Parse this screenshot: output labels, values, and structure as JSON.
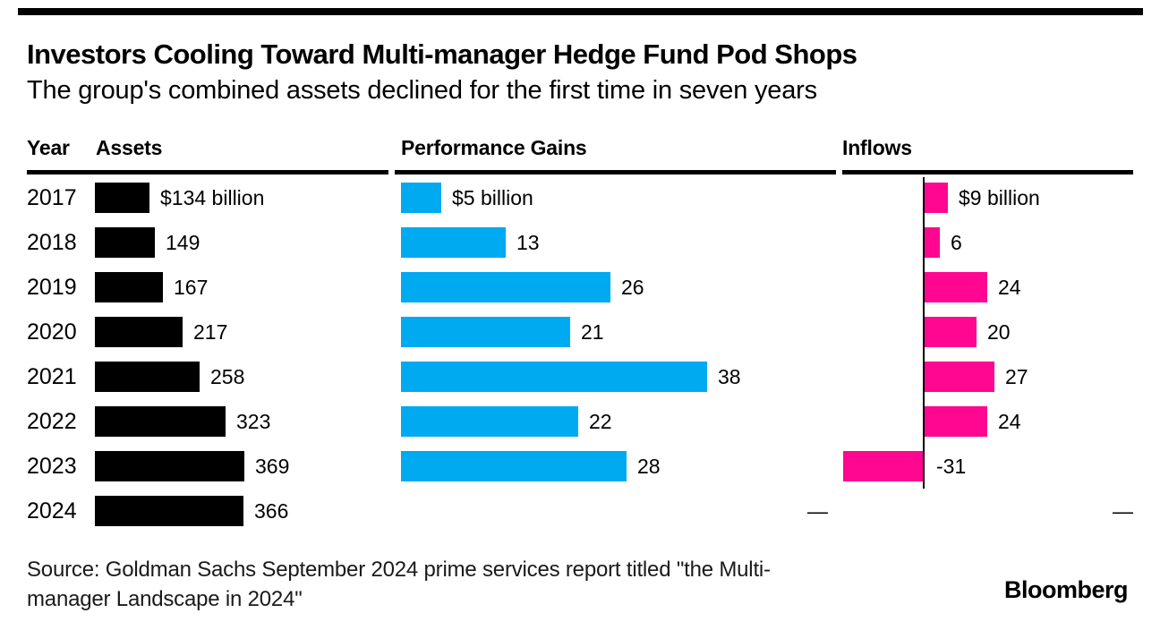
{
  "header": {
    "title": "Investors Cooling Toward Multi-manager Hedge Fund Pod Shops",
    "subtitle": "The group's combined assets declined for the first time in seven years"
  },
  "table": {
    "year_header": "Year",
    "columns": [
      "Assets",
      "Performance Gains",
      "Inflows"
    ]
  },
  "chart_data": {
    "type": "bar",
    "orientation": "horizontal",
    "categories": [
      "2017",
      "2018",
      "2019",
      "2020",
      "2021",
      "2022",
      "2023",
      "2024"
    ],
    "series": [
      {
        "name": "Assets",
        "color": "#000000",
        "values": [
          134,
          149,
          167,
          217,
          258,
          323,
          369,
          366
        ],
        "labels": [
          "$134 billion",
          "149",
          "167",
          "217",
          "258",
          "323",
          "369",
          "366"
        ]
      },
      {
        "name": "Performance Gains",
        "color": "#00aaf0",
        "values": [
          5,
          13,
          26,
          21,
          38,
          22,
          28,
          null
        ],
        "labels": [
          "$5 billion",
          "13",
          "26",
          "21",
          "38",
          "22",
          "28",
          "—"
        ]
      },
      {
        "name": "Inflows",
        "color": "#ff0790",
        "values": [
          9,
          6,
          24,
          20,
          27,
          24,
          -31,
          null
        ],
        "labels": [
          "$9 billion",
          "6",
          "24",
          "20",
          "27",
          "24",
          "-31",
          "—"
        ],
        "has_zero_axis": true
      }
    ],
    "unit_note": "values shown in $ billions",
    "missing_marker": "—"
  },
  "footer": {
    "source_line1": "Source: Goldman Sachs September 2024 prime services report titled \"the Multi-",
    "source_line2": "manager Landscape in 2024\"",
    "brand": "Bloomberg"
  }
}
